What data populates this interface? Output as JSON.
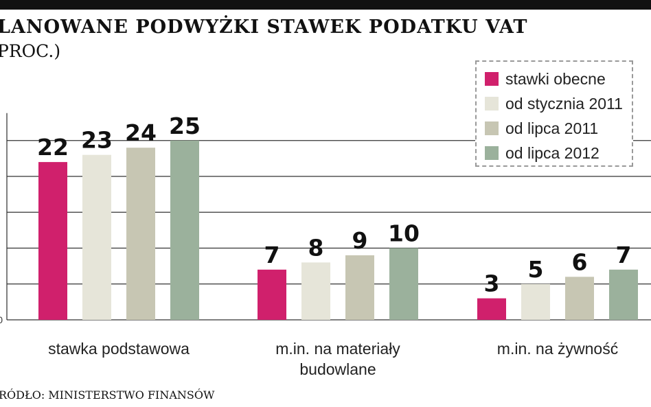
{
  "header": {
    "title": "LANOWANE PODWYŻKI STAWEK PODATKU VAT",
    "subtitle": "PROC.)"
  },
  "footer": {
    "source": "RÓDŁO: MINISTERSTWO FINANSÓW"
  },
  "chart_data": {
    "type": "bar",
    "title": "LANOWANE PODWYŻKI STAWEK PODATKU VAT",
    "subtitle": "PROC.)",
    "xlabel": "",
    "ylabel": "",
    "ylim": [
      0,
      25
    ],
    "grid": true,
    "legend_position": "top-right",
    "categories": [
      [
        "stawka podstawowa"
      ],
      [
        "m.in. na materiały",
        "budowlane"
      ],
      [
        "m.in. na żywność"
      ]
    ],
    "y_ticks": [
      0,
      5,
      10,
      15,
      20,
      25
    ],
    "y_tick_labels": [
      "0",
      "",
      "",
      "",
      "",
      ""
    ],
    "series": [
      {
        "name": "stawki obecne",
        "color": "#d0206c",
        "values": [
          22,
          7,
          3
        ]
      },
      {
        "name": "od stycznia 2011",
        "color": "#e6e5d9",
        "values": [
          23,
          8,
          5
        ]
      },
      {
        "name": "od lipca 2011",
        "color": "#c7c6b3",
        "values": [
          24,
          9,
          6
        ]
      },
      {
        "name": "od lipca 2012",
        "color": "#9bb19c",
        "values": [
          25,
          10,
          7
        ]
      }
    ]
  }
}
